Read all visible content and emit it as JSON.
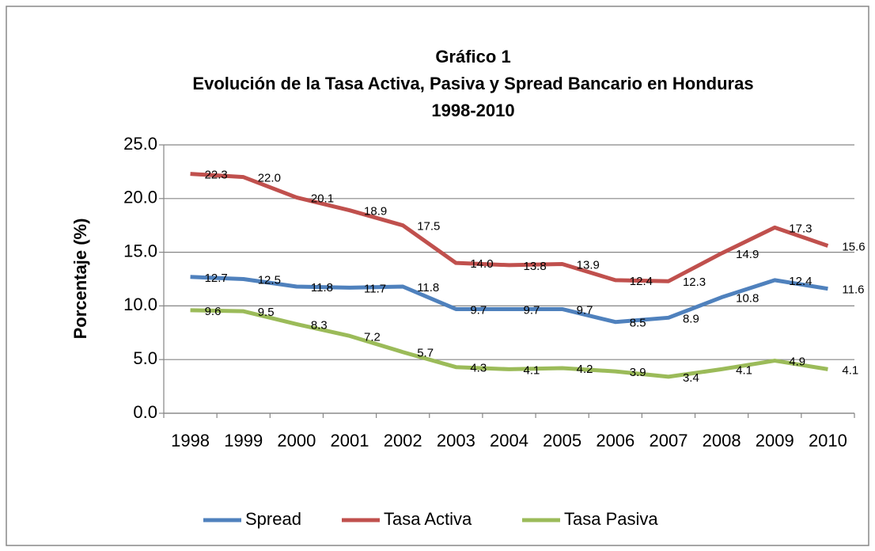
{
  "chart_data": {
    "type": "line",
    "title": [
      "Gráfico 1",
      "Evolución de la Tasa Activa, Pasiva y  Spread Bancario en Honduras",
      "1998-2010"
    ],
    "y_label": "Porcentaje (%)",
    "categories": [
      "1998",
      "1999",
      "2000",
      "2001",
      "2002",
      "2003",
      "2004",
      "2005",
      "2006",
      "2007",
      "2008",
      "2009",
      "2010"
    ],
    "series": [
      {
        "name": "Spread",
        "color": "#4f81bd",
        "values": [
          12.7,
          12.5,
          11.8,
          11.7,
          11.8,
          9.7,
          9.7,
          9.7,
          8.5,
          8.9,
          10.8,
          12.4,
          11.6
        ],
        "value_labels": [
          "12.7",
          "12.5",
          "11.8",
          "11.7",
          "11.8",
          "9.7",
          "9.7",
          "9.7",
          "8.5",
          "8.9",
          "10.8",
          "12.4",
          "11.6"
        ]
      },
      {
        "name": "Tasa Activa",
        "color": "#c0504d",
        "values": [
          22.3,
          22.0,
          20.1,
          18.9,
          17.5,
          14.0,
          13.8,
          13.9,
          12.4,
          12.3,
          14.9,
          17.3,
          15.6
        ],
        "value_labels": [
          "22.3",
          "22.0",
          "20.1",
          "18.9",
          "17.5",
          "14.0",
          "13.8",
          "13.9",
          "12.4",
          "12.3",
          "14.9",
          "17.3",
          "15.6"
        ]
      },
      {
        "name": "Tasa Pasiva",
        "color": "#9bbb59",
        "values": [
          9.6,
          9.5,
          8.3,
          7.2,
          5.7,
          4.3,
          4.1,
          4.2,
          3.9,
          3.4,
          4.1,
          4.9,
          4.1
        ],
        "value_labels": [
          "9.6",
          "9.5",
          "8.3",
          "7.2",
          "5.7",
          "4.3",
          "4.1",
          "4.2",
          "3.9",
          "3.4",
          "4.1",
          "4.9",
          "4.1"
        ]
      }
    ],
    "ylim": [
      0,
      25
    ],
    "yticks": [
      {
        "value": 0,
        "label": "0.0"
      },
      {
        "value": 5,
        "label": "5.0"
      },
      {
        "value": 10,
        "label": "10.0"
      },
      {
        "value": 15,
        "label": "15.0"
      },
      {
        "value": 20,
        "label": "20.0"
      },
      {
        "value": 25,
        "label": "25.0"
      }
    ],
    "grid": true,
    "legend": "bottom"
  }
}
